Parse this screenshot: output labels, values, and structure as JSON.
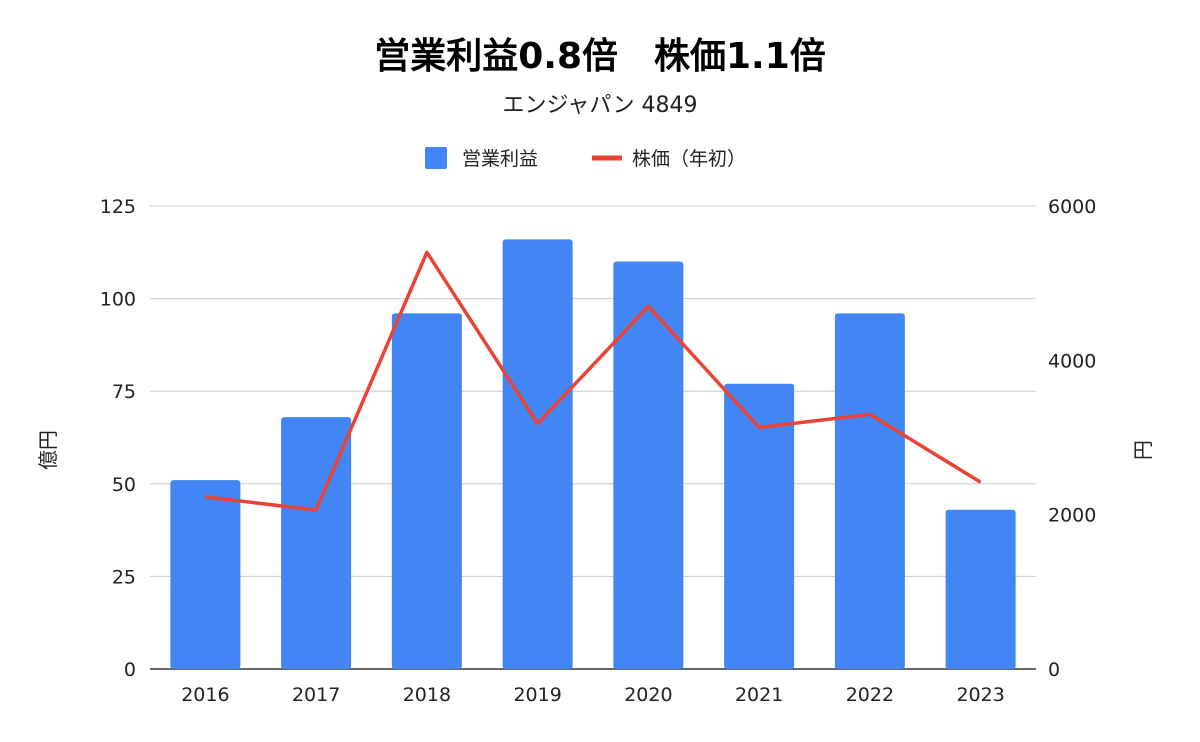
{
  "chart_data": {
    "type": "bar+line",
    "title": "営業利益0.8倍　株価1.1倍",
    "subtitle": "エンジャパン 4849",
    "categories": [
      "2016",
      "2017",
      "2018",
      "2019",
      "2020",
      "2021",
      "2022",
      "2023"
    ],
    "series": [
      {
        "name": "営業利益",
        "type": "bar",
        "axis": "left",
        "color": "#4285F4",
        "values": [
          51,
          68,
          96,
          116,
          110,
          77,
          96,
          43
        ]
      },
      {
        "name": "株価（年初）",
        "type": "line",
        "axis": "right",
        "color": "#EA4335",
        "values": [
          2230,
          2060,
          5400,
          3180,
          4700,
          3130,
          3300,
          2420
        ]
      }
    ],
    "y_left": {
      "label": "億円",
      "min": 0,
      "max": 125,
      "ticks": [
        "0",
        "25",
        "50",
        "75",
        "100",
        "125"
      ]
    },
    "y_right": {
      "label": "円",
      "min": 0,
      "max": 6000,
      "ticks": [
        "0",
        "2000",
        "4000",
        "6000"
      ]
    },
    "grid": true,
    "legend_position": "top"
  }
}
